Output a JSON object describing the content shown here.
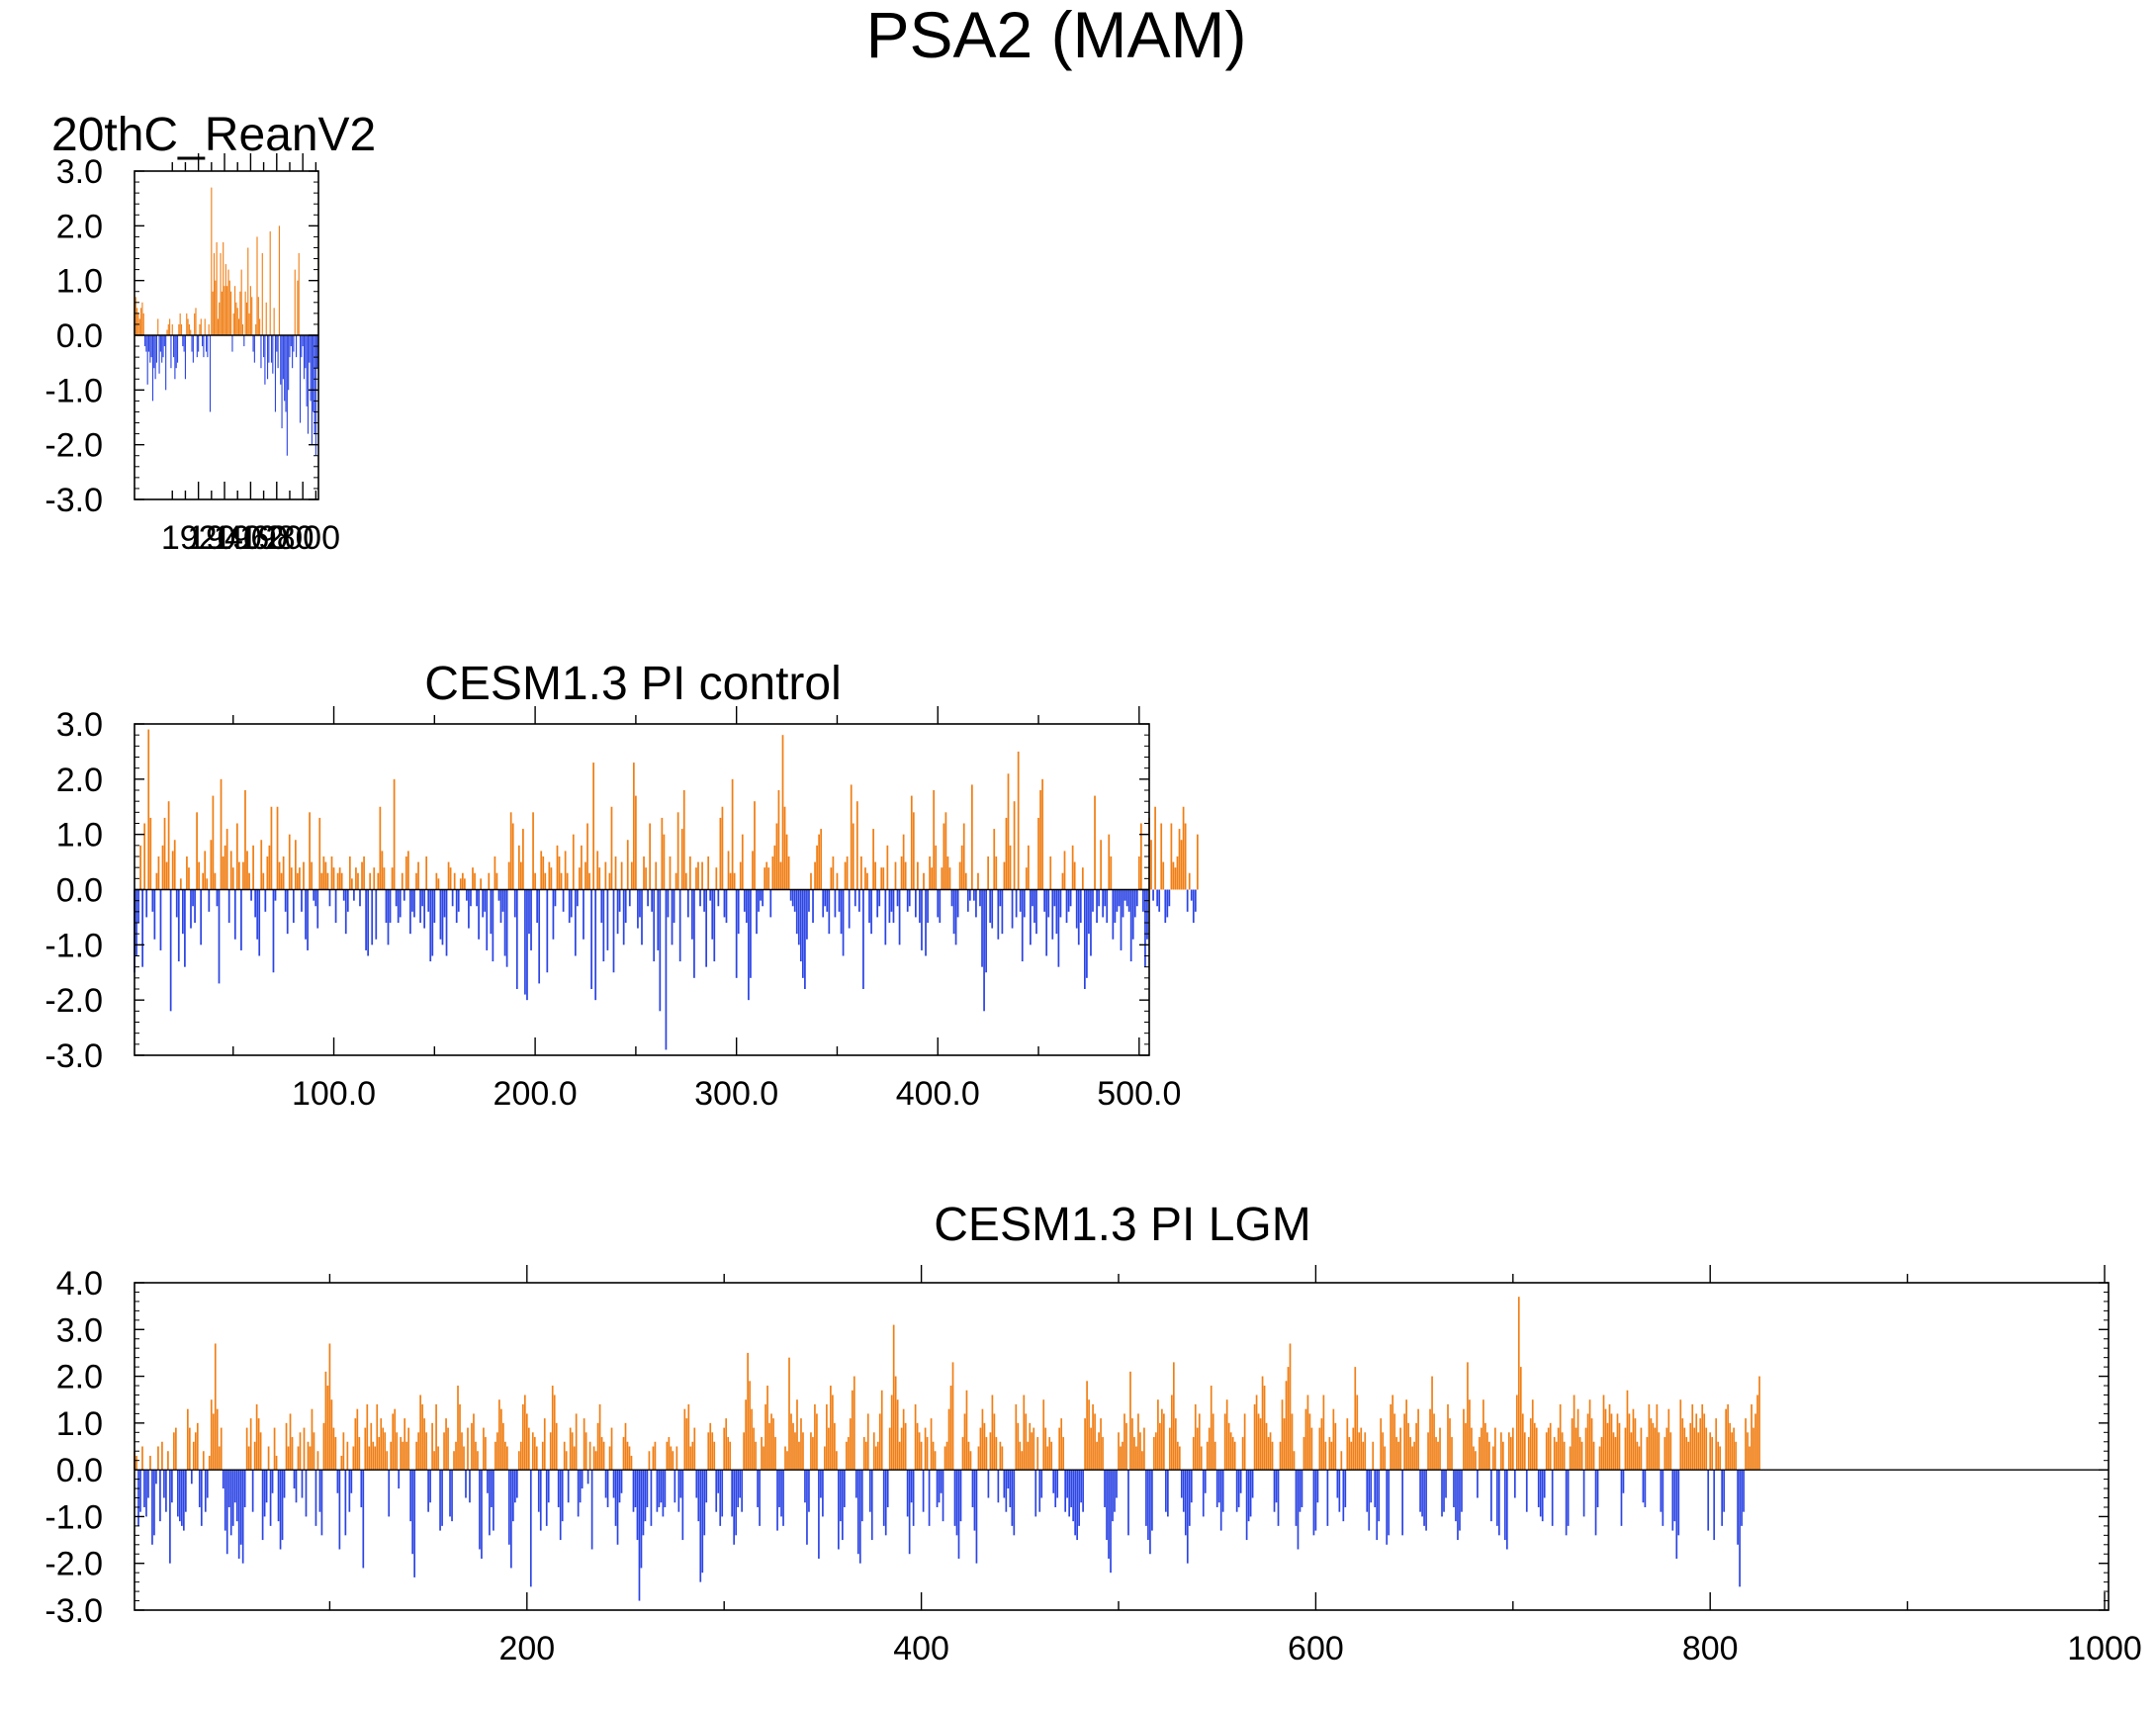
{
  "figure": {
    "title": "PSA2 (MAM)"
  },
  "colors": {
    "positive": "#F07E14",
    "negative": "#2B44E4",
    "axis": "#000000"
  },
  "chart_data": [
    {
      "type": "bar",
      "title": "20thC_ReanV2",
      "xlabel": "",
      "ylabel": "",
      "xlim": [
        1871,
        2012
      ],
      "ylim": [
        -3.0,
        3.0
      ],
      "y_ticks": [
        -3.0,
        -2.0,
        -1.0,
        0.0,
        1.0,
        2.0,
        3.0
      ],
      "y_tick_labels": [
        "-3.0",
        "-2.0",
        "-1.0",
        "0.0",
        "1.0",
        "2.0",
        "3.0"
      ],
      "x_ticks": [
        1920,
        1940,
        1960,
        1980,
        2000
      ],
      "x_tick_labels": [
        "1920",
        "1940",
        "1960",
        "1980",
        "2000"
      ],
      "grid": false,
      "legend": "none",
      "series": [
        {
          "x_start": 1871,
          "values": [
            0.6,
            0.7,
            0.5,
            0.4,
            0.3,
            0.5,
            0.6,
            0.4,
            -0.2,
            -0.3,
            -0.9,
            -0.3,
            -0.5,
            -0.4,
            -1.2,
            -0.6,
            -0.8,
            -0.5,
            0.3,
            -0.7,
            -0.3,
            -0.5,
            -0.4,
            -0.2,
            -1.0,
            0.1,
            0.2,
            0.3,
            -0.6,
            0.2,
            -0.4,
            -0.8,
            -0.6,
            -0.5,
            0.2,
            0.4,
            0.2,
            -0.2,
            -0.3,
            -0.8,
            0.4,
            0.3,
            0.2,
            0.1,
            -0.3,
            -0.5,
            0.4,
            0.5,
            -0.4,
            -0.3,
            0.2,
            0.3,
            -0.2,
            -0.4,
            0.3,
            -0.3,
            -0.4,
            0.2,
            -1.4,
            2.7,
            0.8,
            1.5,
            1.0,
            1.7,
            0.3,
            0.6,
            1.5,
            0.8,
            1.7,
            0.9,
            1.3,
            0.9,
            1.2,
            1.0,
            0.8,
            -0.3,
            0.4,
            0.9,
            0.6,
            0.5,
            0.3,
            0.8,
            1.2,
            0.2,
            -0.2,
            0.8,
            0.6,
            1.6,
            0.4,
            0.9,
            0.7,
            -0.3,
            -0.5,
            0.2,
            1.8,
            0.7,
            0.3,
            -0.6,
            1.5,
            -0.4,
            -0.9,
            0.6,
            -0.8,
            -0.5,
            1.9,
            -0.5,
            -0.7,
            0.5,
            -1.4,
            -0.3,
            -0.6,
            2.0,
            -0.9,
            -1.7,
            -0.8,
            -1.2,
            -1.4,
            -2.2,
            -1.0,
            -0.4,
            -0.2,
            -0.6,
            -0.3,
            1.2,
            -0.4,
            1.0,
            1.5,
            -1.6,
            -0.4,
            -0.2,
            -0.8,
            -0.6,
            -1.3,
            -1.8,
            -0.5,
            -1.2,
            -2.0,
            -1.4,
            -1.8,
            -2.2,
            -0.6,
            1.8
          ]
        }
      ]
    },
    {
      "type": "bar",
      "title": "CESM1.3 PI control",
      "xlabel": "",
      "ylabel": "",
      "xlim": [
        1,
        505
      ],
      "ylim": [
        -3.0,
        3.0
      ],
      "y_ticks": [
        -3.0,
        -2.0,
        -1.0,
        0.0,
        1.0,
        2.0,
        3.0
      ],
      "y_tick_labels": [
        "-3.0",
        "-2.0",
        "-1.0",
        "0.0",
        "1.0",
        "2.0",
        "3.0"
      ],
      "x_ticks": [
        100,
        200,
        300,
        400,
        500
      ],
      "x_tick_labels": [
        "100.0",
        "200.0",
        "300.0",
        "400.0",
        "500.0"
      ],
      "grid": false,
      "legend": "none",
      "series": [
        {
          "x_start": 1,
          "values": [
            -1.5,
            -1.2,
            -0.6,
            0.8,
            -1.4,
            1.2,
            -0.5,
            2.9,
            1.3,
            -0.4,
            -0.9,
            0.3,
            0.6,
            -1.1,
            0.8,
            1.3,
            0.5,
            1.6,
            -2.2,
            0.7,
            0.9,
            -0.5,
            -1.3,
            0.2,
            -0.8,
            -1.4,
            0.6,
            0.4,
            -0.7,
            -0.3,
            -0.6,
            1.4,
            0.5,
            -1.0,
            0.3,
            0.7,
            0.2,
            -0.4,
            0.9,
            1.7,
            0.3,
            -0.3,
            -1.7,
            2.0,
            0.6,
            0.8,
            1.1,
            -0.6,
            0.7,
            0.4,
            -0.9,
            1.2,
            0.5,
            -1.1,
            0.5,
            1.8,
            0.7,
            0.3,
            -0.2,
            0.8,
            -0.5,
            -0.9,
            -1.2,
            0.9,
            0.3,
            -0.4,
            0.6,
            0.8,
            1.5,
            -1.5,
            -0.2,
            1.5,
            0.5,
            0.3,
            0.6,
            -0.4,
            -0.8,
            1.0,
            0.4,
            -0.6,
            0.9,
            0.3,
            0.4,
            -0.4,
            0.5,
            -0.9,
            -1.1,
            1.4,
            0.5,
            -0.2,
            -0.3,
            -0.7,
            1.3,
            0.3,
            0.6,
            0.5,
            0.3,
            -0.3,
            0.6,
            0.4,
            -0.6,
            0.3,
            0.4,
            0.3,
            -0.2,
            -0.8,
            -0.4,
            0.6,
            0.2,
            -0.2,
            0.4,
            0.3,
            -0.3,
            0.5,
            0.6,
            -1.1,
            -1.2,
            0.3,
            -1.0,
            0.4,
            -0.9,
            0.3,
            1.5,
            0.7,
            0.4,
            -0.6,
            -1.0,
            -0.6,
            0.4,
            2.0,
            -0.3,
            -0.6,
            -0.5,
            0.3,
            -0.2,
            0.6,
            0.7,
            -0.8,
            -0.4,
            -0.5,
            0.3,
            0.5,
            -0.6,
            -0.3,
            -0.7,
            0.6,
            -0.4,
            -1.3,
            -1.2,
            -0.6,
            0.3,
            0.2,
            -0.9,
            -1.0,
            -0.5,
            -1.2,
            0.5,
            0.4,
            -0.3,
            0.3,
            -0.6,
            -0.4,
            0.2,
            0.3,
            0.2,
            -0.2,
            -0.7,
            -0.3,
            0.4,
            0.3,
            -0.3,
            -0.9,
            0.2,
            -0.5,
            -0.4,
            -1.1,
            0.3,
            -0.8,
            -1.3,
            0.6,
            0.3,
            -0.2,
            -0.6,
            -0.4,
            -1.2,
            -1.4,
            0.5,
            1.4,
            1.2,
            -0.5,
            -1.8,
            0.8,
            0.5,
            1.1,
            -1.9,
            -2.0,
            -0.8,
            -1.1,
            1.4,
            0.3,
            -0.6,
            -1.7,
            0.7,
            0.6,
            0.3,
            -1.5,
            0.5,
            0.4,
            -0.9,
            -0.3,
            0.8,
            0.6,
            0.3,
            -0.4,
            0.7,
            0.3,
            -0.6,
            -0.5,
            1.0,
            -1.2,
            -0.3,
            0.4,
            0.8,
            -0.9,
            0.5,
            1.2,
            0.3,
            -1.8,
            2.3,
            -2.0,
            0.7,
            0.4,
            -0.6,
            -1.3,
            0.5,
            -1.1,
            0.3,
            1.5,
            -1.5,
            0.6,
            -0.8,
            -0.4,
            0.5,
            -1.0,
            -0.6,
            0.9,
            -0.3,
            0.5,
            2.3,
            1.7,
            -0.7,
            -0.5,
            -1.0,
            0.6,
            0.4,
            -0.3,
            1.2,
            -0.4,
            -1.3,
            0.5,
            -1.1,
            -2.2,
            1.3,
            1.0,
            -2.9,
            -0.5,
            0.6,
            -1.0,
            -0.6,
            0.3,
            1.4,
            -1.3,
            1.1,
            1.8,
            0.3,
            -0.5,
            0.6,
            -0.9,
            -1.6,
            0.4,
            0.5,
            -0.3,
            0.5,
            -0.4,
            -1.4,
            0.6,
            -0.2,
            -0.9,
            -1.3,
            0.4,
            -0.3,
            1.3,
            1.5,
            -0.5,
            -0.6,
            0.7,
            0.3,
            2.0,
            0.3,
            -1.6,
            -0.8,
            0.5,
            1.0,
            -0.4,
            -0.6,
            -2.0,
            -1.6,
            0.7,
            1.6,
            -0.8,
            -0.4,
            -0.2,
            -0.3,
            0.4,
            0.5,
            0.4,
            -0.5,
            0.6,
            0.8,
            1.2,
            1.8,
            0.5,
            2.8,
            1.5,
            1.0,
            0.6,
            -0.2,
            -0.3,
            -0.4,
            -0.8,
            -1.0,
            -1.3,
            -1.6,
            -1.8,
            -0.9,
            -0.4,
            0.3,
            -0.6,
            0.5,
            0.8,
            1.0,
            1.1,
            -0.5,
            -0.3,
            -0.4,
            -0.8,
            0.4,
            0.6,
            -0.5,
            0.3,
            -0.4,
            -0.8,
            -1.2,
            0.5,
            0.6,
            -0.7,
            1.9,
            1.2,
            -0.3,
            1.6,
            -0.4,
            0.6,
            -1.8,
            0.4,
            0.3,
            -0.6,
            -0.8,
            1.1,
            0.5,
            -0.5,
            -0.3,
            0.4,
            0.4,
            -1.0,
            0.8,
            -0.6,
            -0.4,
            -0.6,
            0.5,
            -0.3,
            -1.0,
            0.6,
            1.0,
            0.5,
            -0.4,
            -0.3,
            1.7,
            1.4,
            -0.5,
            0.5,
            -0.6,
            -1.1,
            0.3,
            -1.2,
            -0.6,
            0.6,
            0.4,
            1.8,
            0.8,
            -0.5,
            -0.6,
            0.4,
            1.2,
            1.4,
            0.6,
            0.4,
            -0.3,
            -0.8,
            -1.0,
            -0.5,
            0.5,
            0.8,
            1.2,
            0.3,
            -0.4,
            -0.2,
            1.9,
            -0.2,
            -0.5,
            0.3,
            -0.3,
            -1.4,
            -2.2,
            -1.5,
            0.6,
            -0.6,
            -0.7,
            1.1,
            0.6,
            -0.9,
            -0.3,
            -0.8,
            0.5,
            1.3,
            2.1,
            0.8,
            -0.7,
            1.6,
            -0.5,
            2.5,
            -0.4,
            -1.3,
            -0.5,
            0.4,
            0.8,
            -1.0,
            -0.3,
            -0.6,
            -0.8,
            1.3,
            1.8,
            2.0,
            -0.4,
            -1.2,
            -0.5,
            0.6,
            -0.9,
            -0.3,
            -0.8,
            -1.4,
            -0.5,
            0.3,
            0.7,
            -0.6,
            -0.4,
            -0.3,
            0.8,
            0.5,
            -0.7,
            -1.0,
            -0.6,
            0.4,
            -1.8,
            -1.6,
            -0.8,
            -1.2,
            -0.4,
            1.7,
            -0.6,
            -0.3,
            0.9,
            -0.5,
            -0.3,
            -0.6,
            1.0,
            0.6,
            -0.9,
            -0.6,
            -0.4,
            -0.3,
            -1.1,
            -0.5,
            -0.2,
            -0.3,
            -0.4,
            -1.3,
            -0.9,
            -0.5,
            -0.3,
            0.6,
            1.2,
            -0.4,
            -1.4,
            -0.9,
            1.3,
            0.9,
            -0.2,
            1.5,
            -0.3,
            -0.4,
            1.2,
            0.5,
            -0.6,
            -0.5,
            -0.3,
            1.2,
            0.5,
            0.4,
            0.6,
            1.1,
            0.9,
            1.5,
            1.2,
            -0.4,
            0.3,
            -0.2,
            -0.6,
            -0.4,
            1.0
          ]
        }
      ]
    },
    {
      "type": "bar",
      "title": "CESM1.3 PI LGM",
      "xlabel": "",
      "ylabel": "",
      "xlim": [
        1,
        1002
      ],
      "ylim": [
        -3.0,
        4.0
      ],
      "y_ticks": [
        -3.0,
        -2.0,
        -1.0,
        0.0,
        1.0,
        2.0,
        3.0,
        4.0
      ],
      "y_tick_labels": [
        "-3.0",
        "-2.0",
        "-1.0",
        "0.0",
        "1.0",
        "2.0",
        "3.0",
        "4.0"
      ],
      "x_ticks": [
        200,
        400,
        600,
        800,
        1000
      ],
      "x_tick_labels": [
        "200",
        "400",
        "600",
        "800",
        "1000"
      ],
      "grid": false,
      "legend": "none",
      "generated_values_note_removed": true,
      "series": [
        {
          "x_start": 1,
          "values_compact": "+4+3-12-9+5-8-10-6+3-16-14-3+5-11+6-6-9+4-20-7+8+9-10-11-12-13-9+13+9-3+6+8+10-8-12+4-9-6+3+15+12+27+13+5+9-4-13-18-8-14-12-7-11-19-16-20-8+9+5+11-9+6+14+11+8-15-10-7+5-12-5+9+3-11-17-15-6+10+5+12+7-4-7+5+8-6+9-10+6+5+13+8-12+4-9-14+10+21+18+27+15+9+7-5-17+3+8-14+6-9-5+5+11+13+7-8-21+9+14+5+10+6+5+14+7+11+9+8+4-10+6+12+13+8-4+7+6+11+6+9-11-18-23+6+8+16+14+11+8-9-7+10+4+14+5-13-12+8+11+9-10-11+4+6+18+14+8+5-6+9-7+10+12+6+4-17-19+9+7-5-14-8-13+6+8+15+13+10+6+5-16-21-11-7-6+4+6+14+16+12+9-25+8+7+5-9-13+6+11-12-7+8+18+16+10-8-15-11+6+4-7+9+8+5+12-10-7-4+11+8-3+6-17+5+4+10+14+7+6-6-8+5+9-6-12-16-7-5+7+10+6+5+3-9-8-15-28-21-14-11-8+4-12+5+6-9-8-7-10-8+6+7+5+4-7+5-9-6-15+13+11+14+5+6+9-6-11-24-22-14-7+8+10+8+6-9-5-12-10+9+11+7+6-10-16-14-8-6-9+8+15+25+19+13+9+6-8-12+7+5+14+18+10+12+11+7-13-8-10-12+5+4+24+12+10+8+15+6+11+8-7-16-9+8+7+14+12-19-6-10+5+14+9+18+16+10+4-17-11-15-8+6+7+11+17+20-6-18-20-11+7+6+12-9-15+8+5+6+12+17-12-14-8+9+16+31+20+15+6+9+13+10-10-18-7-12+14+10+8+6-9+9+7-12+11+6+4-8-7-5-11+5+6+13+18+23-12-14-19-11+7+12+17+6+4-8-13-20+5+9+13+10+7-6+8+16+12+7-7+6+5-6-9-4-8-12-14+14+10+6+4+16+12+6+10+8+9-10+7-9-6+15+9+5+7+6-5-8-6+9+11+7-9-6-10-8-11-14-15-12-7-9+11+19+15+9+14+12+6+8+11+7-8-15-19-22-11-9-6+8+5+6+12+10-14+21+11+7+5+12+8+4+9-12-15-18-13+7+8+15+10+13+12-9-10+9+16+23+11+6+5-6-9-14-20-12-7+7+14+9+12+5-10-5+6+9+18+12+6-8-7-13-9+12+15+10+8+7+6-9-8-5+7+12-15-11-10-6+14+16+12+11+20+18+10+7+8+6-9-7-12+6+15+11+19+22+27+12+4-12-17-9-8+7+13+16+12+9-14-13-7+9+11+16+6-12+7+6+13+10-6-9+4-11-8+11+7+6+9+22+16+8+9+6+8-9-13-7+6-8-15-11+11+8+5-16-14+14+16+12+7+6+9-14+12+15+10+7+5+6+10+13-9-10-12-13+8+13+20+12+7+6+9-10-9-6+14+11+7-8-11-15-13-9+13+10+23+15+9+5+4-6+7+9+15+10+8+6-11+5+9-12-14+8+6-15-17+8+7+9-6+16+37+22+12+8-9+7+11+15+10+9-8-10-11-6+8+9+10-12+7+6+9+14+8+6-14-12+5+11+16+9+13+7+6-10+9+12+15+11+6-14-8+5+7+16+13+10+14+12+8+7+12+10-12-5+9+17+12+8+13+11+6+5+9-7-8+7+14+11+10+9+14+8-9-12+7+9+13+8-13-11-19-14+15+11+9+7+6+10+14+9+12+8+11+14+12+9-13+8+7-15+11+6+5-12-9+13+14+10+8+9+6-16-25-12-9+11+8+5+14+9+12+16+20"
        }
      ]
    }
  ]
}
